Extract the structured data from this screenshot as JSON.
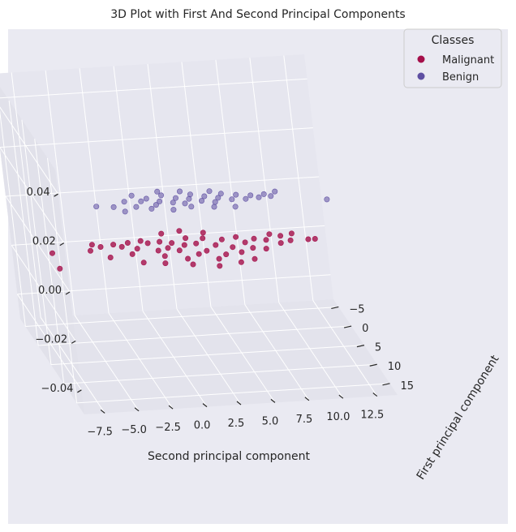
{
  "chart_data": {
    "type": "scatter",
    "projection": "3d",
    "title": "3D Plot with First And Second Principal Components",
    "xlabel": "Second principal component",
    "ylabel": "First principal component",
    "zlabel": "",
    "xlim": [
      -9,
      14
    ],
    "ylim": [
      -7,
      18
    ],
    "zlim": [
      -0.05,
      0.05
    ],
    "xticks": [
      -7.5,
      -5.0,
      -2.5,
      0.0,
      2.5,
      5.0,
      7.5,
      10.0,
      12.5
    ],
    "xticklabels": [
      "−7.5",
      "−5.0",
      "−2.5",
      "0.0",
      "2.5",
      "5.0",
      "7.5",
      "10.0",
      "12.5"
    ],
    "yticks": [
      -5,
      0,
      5,
      10,
      15
    ],
    "yticklabels": [
      "−5",
      "0",
      "5",
      "10",
      "15"
    ],
    "zticks": [
      0.04,
      0.02,
      0.0,
      -0.02,
      -0.04
    ],
    "zticklabels": [
      "0.04",
      "0.02",
      "0.00",
      "−0.02",
      "−0.04"
    ],
    "grid": true,
    "legend": {
      "title": "Classes",
      "placement": "top-right"
    },
    "series": [
      {
        "name": "Malignant",
        "color": "#a50f4a",
        "points": [
          [
            -8.6,
            12.0,
            0
          ],
          [
            -8.4,
            8.0,
            0
          ],
          [
            -5.6,
            8.0,
            0
          ],
          [
            -5.2,
            6.5,
            0
          ],
          [
            -4.7,
            7.2,
            0
          ],
          [
            -4.5,
            10.0,
            0
          ],
          [
            -3.7,
            6.8,
            0
          ],
          [
            -3.2,
            7.5,
            0
          ],
          [
            -2.8,
            9.5,
            0
          ],
          [
            -2.6,
            6.6,
            0
          ],
          [
            -2.2,
            8.2,
            0
          ],
          [
            -1.6,
            6.3,
            0
          ],
          [
            -1.2,
            7.0,
            0
          ],
          [
            -0.8,
            9.0,
            0
          ],
          [
            -0.6,
            10.5,
            0
          ],
          [
            -0.3,
            6.8,
            0
          ],
          [
            0.0,
            8.5,
            0
          ],
          [
            0.5,
            7.3,
            0
          ],
          [
            0.7,
            9.3,
            0
          ],
          [
            0.9,
            11.5,
            0
          ],
          [
            1.3,
            8.0,
            0
          ],
          [
            1.7,
            6.3,
            0
          ],
          [
            1.9,
            10.5,
            0
          ],
          [
            2.2,
            7.8,
            0
          ],
          [
            2.6,
            9.8,
            0
          ],
          [
            2.9,
            6.6,
            0
          ],
          [
            3.1,
            12.0,
            0
          ],
          [
            3.5,
            8.5,
            0
          ],
          [
            3.8,
            11.0,
            0
          ],
          [
            4.2,
            7.2,
            0
          ],
          [
            4.6,
            9.3,
            0
          ],
          [
            5.0,
            10.7,
            0
          ],
          [
            5.3,
            6.8,
            0
          ],
          [
            5.7,
            8.3,
            0
          ],
          [
            6.0,
            9.8,
            0
          ],
          [
            6.5,
            7.5,
            0
          ],
          [
            6.9,
            10.2,
            0
          ],
          [
            7.3,
            8.0,
            0
          ],
          [
            7.8,
            6.6,
            0
          ],
          [
            8.2,
            9.0,
            0
          ],
          [
            8.5,
            7.2,
            0
          ],
          [
            9.0,
            8.5,
            0
          ],
          [
            9.4,
            6.8,
            0
          ],
          [
            10.3,
            8.5,
            0
          ],
          [
            10.8,
            8.5,
            0
          ],
          [
            -2.4,
            11.8,
            0
          ],
          [
            -0.9,
            12.3,
            0
          ],
          [
            1.0,
            13.0,
            0
          ],
          [
            2.8,
            13.8,
            0
          ],
          [
            4.5,
            13.2,
            0
          ],
          [
            5.6,
            12.6,
            0
          ],
          [
            0.2,
            4.8,
            0
          ],
          [
            1.6,
            4.4,
            0
          ],
          [
            3.2,
            5.2,
            0
          ]
        ]
      },
      {
        "name": "Benign",
        "color": "#5e4fa2",
        "points": [
          [
            -3.1,
            -3.0,
            0
          ],
          [
            -1.9,
            -2.6,
            0
          ],
          [
            -0.9,
            -3.8,
            0
          ],
          [
            -0.3,
            -2.3,
            0
          ],
          [
            0.3,
            -3.6,
            0
          ],
          [
            0.8,
            -4.2,
            0
          ],
          [
            1.2,
            -2.5,
            0
          ],
          [
            1.6,
            -3.3,
            0
          ],
          [
            2.0,
            -4.8,
            0
          ],
          [
            2.5,
            -2.8,
            0
          ],
          [
            2.9,
            -3.9,
            0
          ],
          [
            3.3,
            -2.4,
            0
          ],
          [
            3.8,
            -3.5,
            0
          ],
          [
            4.1,
            -4.6,
            0
          ],
          [
            4.6,
            -2.8,
            0
          ],
          [
            5.0,
            -3.9,
            0
          ],
          [
            5.5,
            -2.3,
            0
          ],
          [
            5.9,
            -3.3,
            0
          ],
          [
            6.3,
            -4.3,
            0
          ],
          [
            6.8,
            -2.7,
            0
          ],
          [
            7.3,
            -3.8,
            0
          ],
          [
            7.8,
            -2.6,
            0
          ],
          [
            8.3,
            -3.4,
            0
          ],
          [
            8.8,
            -2.8,
            0
          ],
          [
            9.3,
            -3.5,
            0
          ],
          [
            9.7,
            -2.9,
            0
          ],
          [
            10.2,
            -4.0,
            0
          ],
          [
            13.5,
            -1.2,
            0
          ],
          [
            -1.3,
            -1.3,
            0
          ],
          [
            0.7,
            -1.6,
            0
          ],
          [
            2.2,
            -1.0,
            0
          ],
          [
            3.6,
            -1.5,
            0
          ],
          [
            5.2,
            -1.1,
            0
          ],
          [
            6.7,
            -0.8,
            0
          ],
          [
            -0.1,
            -5.2,
            0
          ],
          [
            1.9,
            -5.8,
            0
          ],
          [
            3.5,
            -5.5,
            0
          ],
          [
            5.6,
            -5.1,
            0
          ]
        ]
      }
    ]
  }
}
